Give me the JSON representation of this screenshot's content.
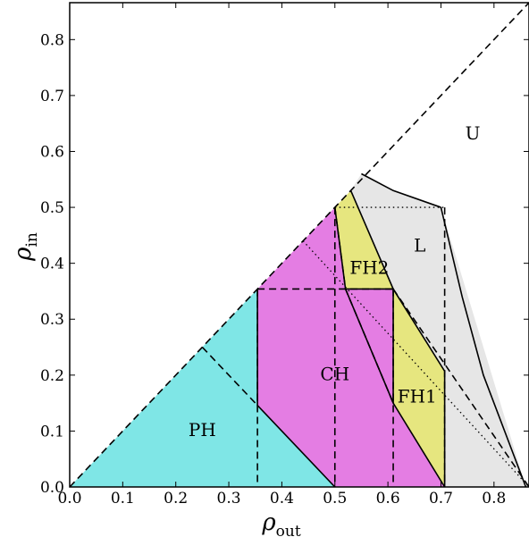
{
  "diagram": {
    "axes": {
      "x": {
        "symbol": "ρ",
        "subscript": "out",
        "range": [
          0,
          0.866
        ],
        "ticks": [
          "0.0",
          "0.1",
          "0.2",
          "0.3",
          "0.4",
          "0.5",
          "0.6",
          "0.7",
          "0.8"
        ]
      },
      "y": {
        "symbol": "ρ",
        "subscript": "in",
        "range": [
          0,
          0.866
        ],
        "ticks": [
          "0.0",
          "0.1",
          "0.2",
          "0.3",
          "0.4",
          "0.5",
          "0.6",
          "0.7",
          "0.8"
        ]
      }
    },
    "colors": {
      "PH": "#7fe6e6",
      "CH": "#e47de3",
      "FH": "#e6e67f",
      "L": "#e6e6e6",
      "line": "#000000"
    },
    "regions": [
      {
        "id": "PH",
        "label": "PH",
        "color_key": "PH",
        "label_at": [
          0.25,
          0.1
        ],
        "points": [
          [
            0,
            0
          ],
          [
            0.354,
            0.354
          ],
          [
            0.354,
            0.146
          ],
          [
            0.5,
            0
          ]
        ]
      },
      {
        "id": "CH",
        "label": "CH",
        "color_key": "CH",
        "label_at": [
          0.5,
          0.2
        ],
        "points": [
          [
            0.354,
            0.354
          ],
          [
            0.5,
            0.5
          ],
          [
            0.52,
            0.354
          ],
          [
            0.61,
            0.354
          ],
          [
            0.61,
            0.15
          ],
          [
            0.707,
            0
          ],
          [
            0.5,
            0
          ],
          [
            0.354,
            0.146
          ]
        ]
      },
      {
        "id": "FH1",
        "label": "FH1",
        "color_key": "FH",
        "label_at": [
          0.655,
          0.16
        ],
        "points": [
          [
            0.61,
            0.354
          ],
          [
            0.707,
            0.207
          ],
          [
            0.707,
            0
          ],
          [
            0.61,
            0.15
          ]
        ]
      },
      {
        "id": "FH2",
        "label": "FH2",
        "color_key": "FH",
        "label_at": [
          0.565,
          0.39
        ],
        "points": [
          [
            0.5,
            0.5
          ],
          [
            0.53,
            0.53
          ],
          [
            0.61,
            0.354
          ],
          [
            0.52,
            0.354
          ]
        ]
      },
      {
        "id": "L",
        "label": "L",
        "color_key": "L",
        "label_at": [
          0.66,
          0.43
        ],
        "points": [
          [
            0.53,
            0.53
          ],
          [
            0.55,
            0.56
          ],
          [
            0.61,
            0.53
          ],
          [
            0.7,
            0.5
          ],
          [
            0.86,
            0
          ],
          [
            0.707,
            0
          ],
          [
            0.707,
            0.207
          ],
          [
            0.61,
            0.354
          ]
        ]
      }
    ],
    "free_labels": [
      {
        "id": "U",
        "label": "U",
        "at": [
          0.76,
          0.63
        ]
      }
    ]
  }
}
